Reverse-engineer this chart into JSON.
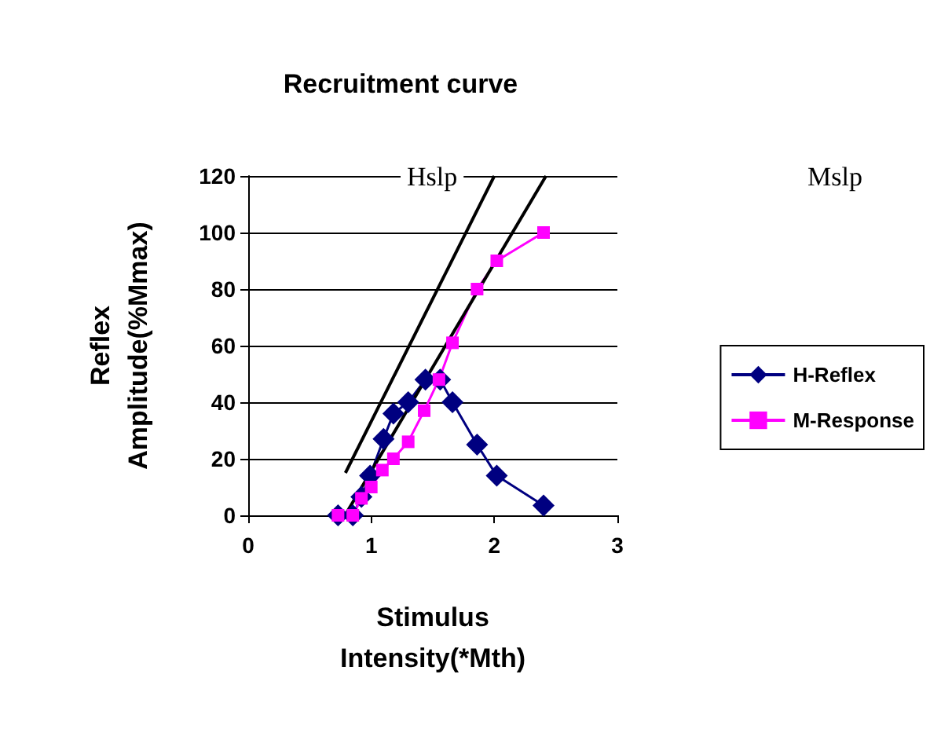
{
  "chart_data": {
    "type": "line",
    "title": "Recruitment curve",
    "xlabel": "Stimulus\nIntensity(*Mth)",
    "ylabel": "Reflex\nAmplitude(%Mmax)",
    "xlim": [
      0,
      3
    ],
    "xticks": [
      0,
      1,
      2,
      3
    ],
    "ylim": [
      0,
      120
    ],
    "yticks": [
      0,
      20,
      40,
      60,
      80,
      100,
      120
    ],
    "grid": "y",
    "legend": "right",
    "annotations": [
      "Hslp",
      "Mslp"
    ],
    "series": [
      {
        "name": "H-Reflex",
        "color": "#000080",
        "marker": "diamond",
        "x": [
          0.73,
          0.85,
          0.92,
          0.99,
          1.1,
          1.18,
          1.3,
          1.44,
          1.56,
          1.66,
          1.86,
          2.02,
          2.4
        ],
        "values": [
          0,
          0,
          6.5,
          14,
          27,
          36,
          40,
          48,
          48,
          40,
          25,
          14,
          3.5
        ]
      },
      {
        "name": "M-Response",
        "color": "#ff00ff",
        "marker": "square",
        "x": [
          0.73,
          0.85,
          0.92,
          1.0,
          1.09,
          1.18,
          1.3,
          1.43,
          1.55,
          1.66,
          1.86,
          2.02,
          2.4
        ],
        "values": [
          0,
          0,
          6,
          10,
          16,
          20,
          26,
          37,
          48,
          61,
          80,
          90,
          100
        ]
      },
      {
        "color": "#000000",
        "marker": "none",
        "x": [
          0.79,
          2.0
        ],
        "values": [
          15,
          120
        ]
      },
      {
        "color": "#000000",
        "marker": "none",
        "x": [
          0.8,
          2.42
        ],
        "values": [
          1,
          120
        ]
      }
    ]
  }
}
